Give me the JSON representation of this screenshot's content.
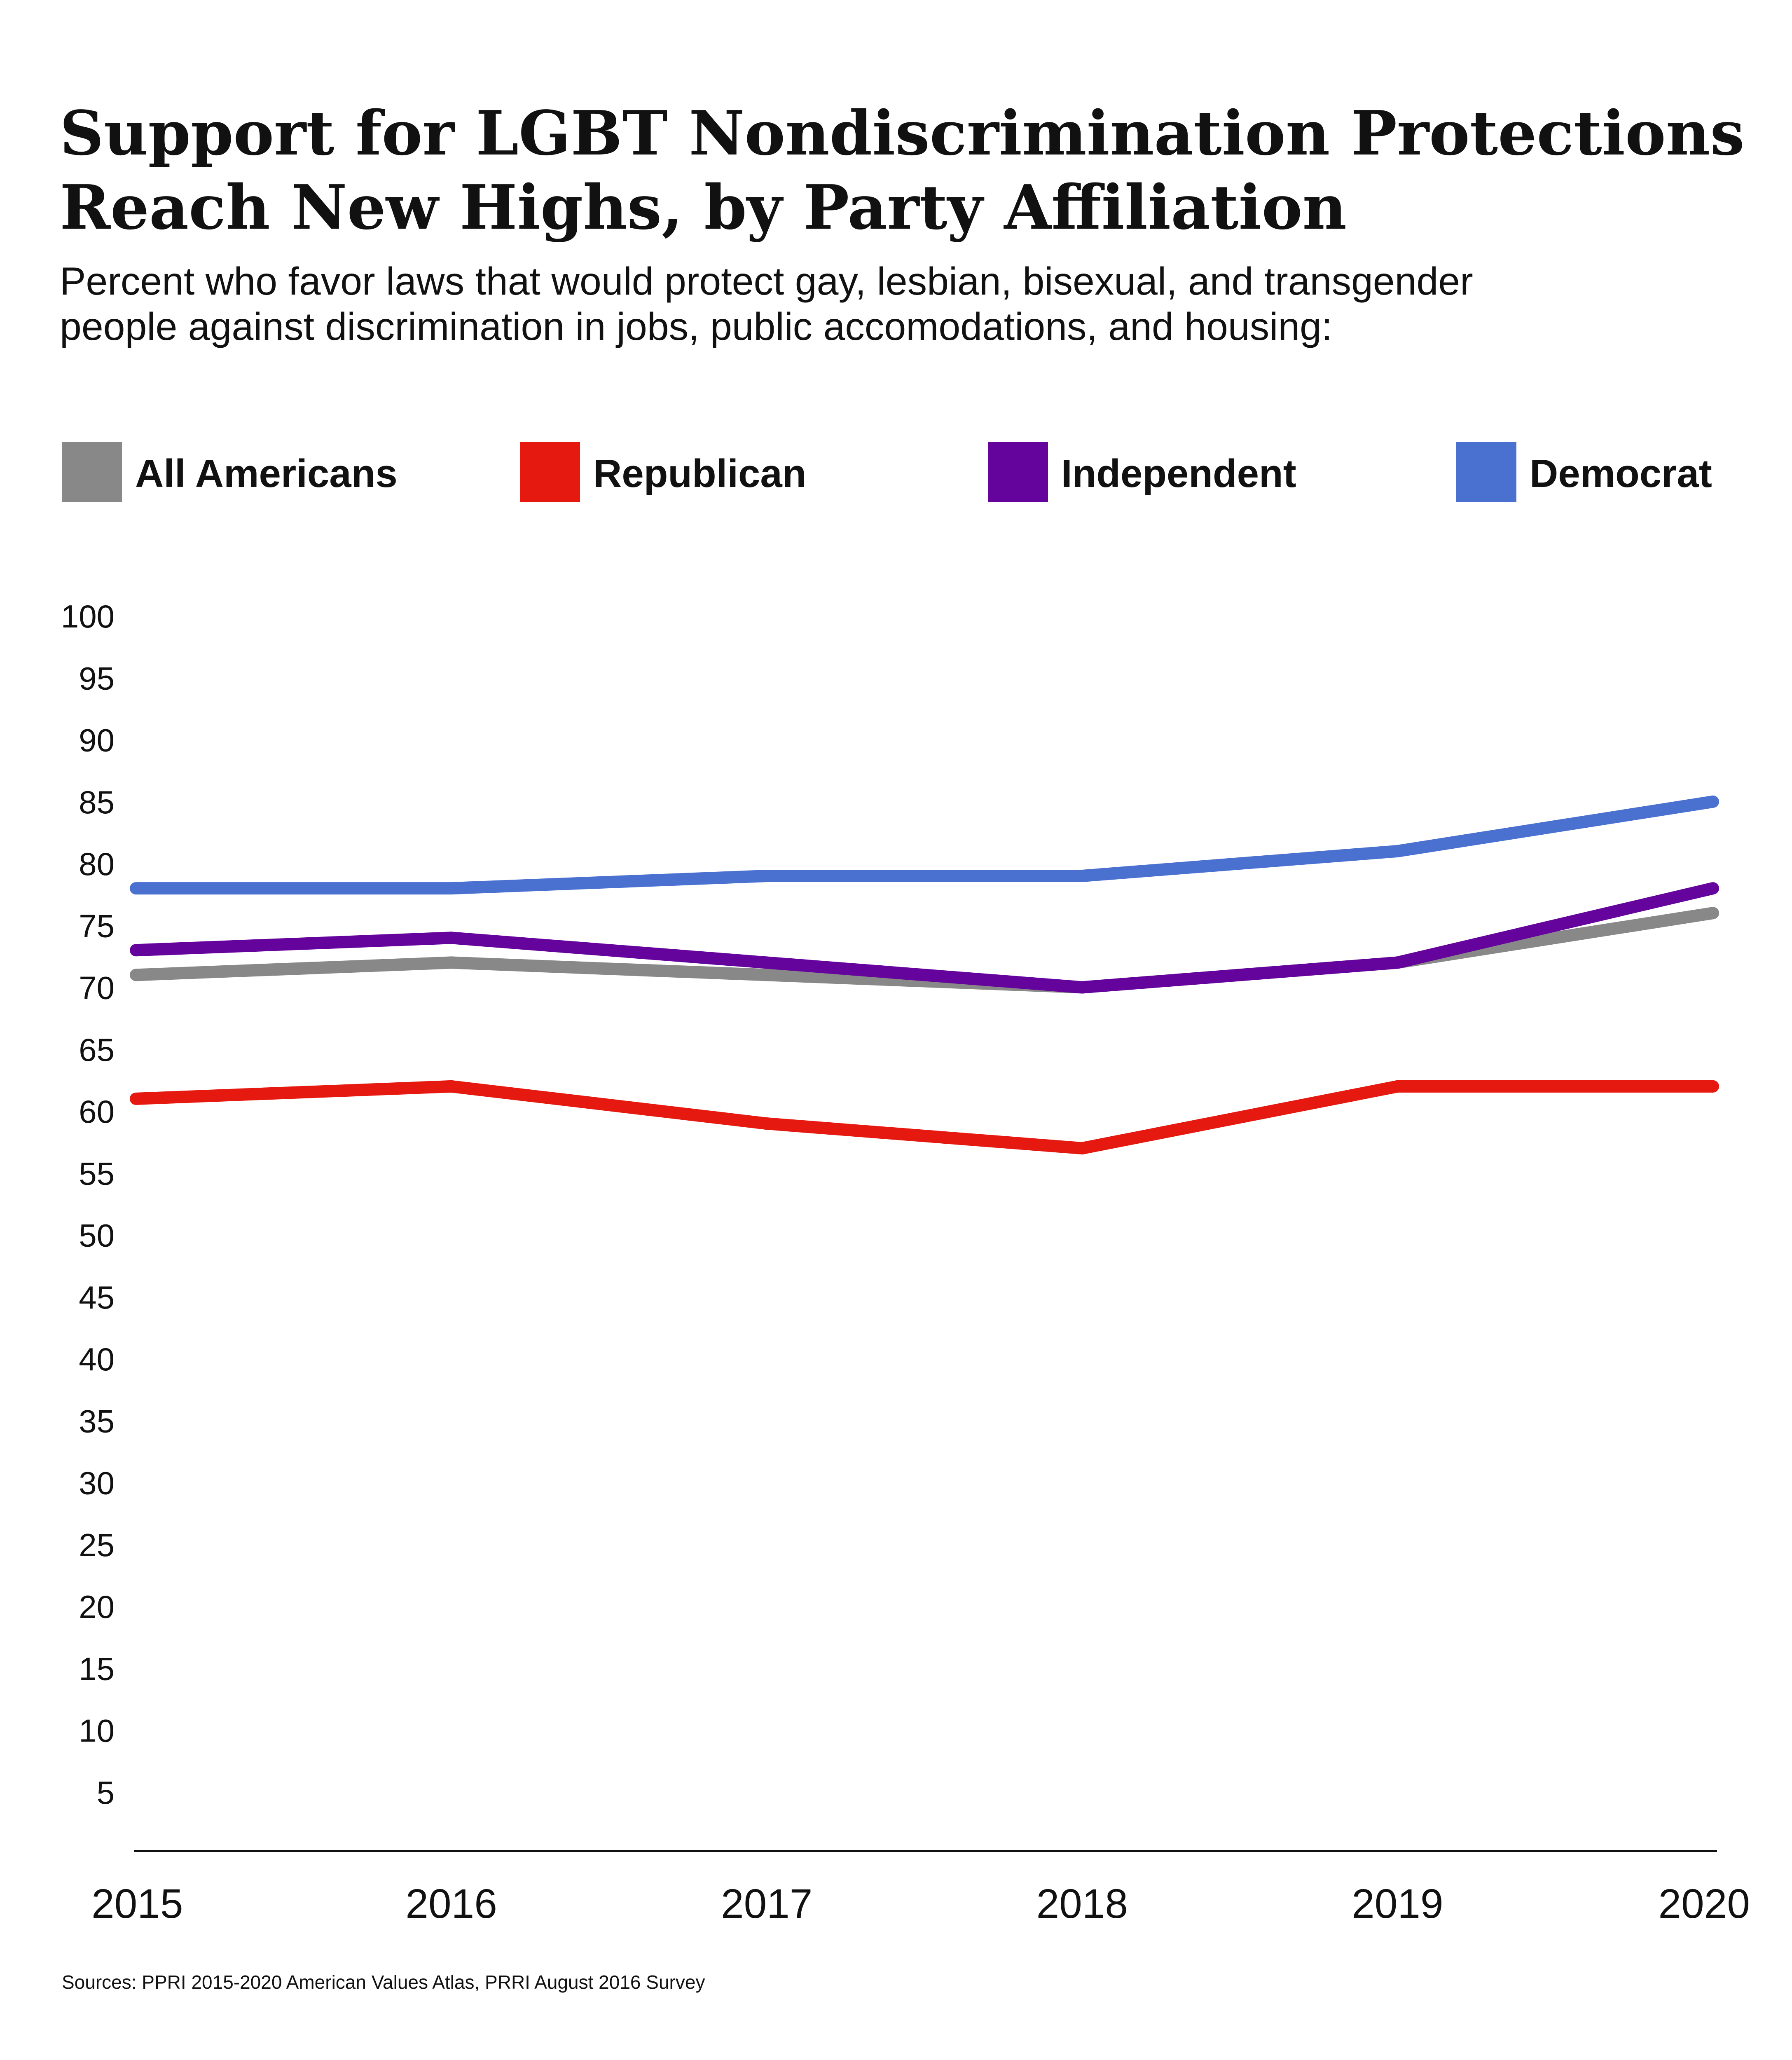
{
  "title_lines": [
    "Support for LGBT Nondiscrimination Protections",
    "Reach New Highs, by Party Affiliation"
  ],
  "subtitle_lines": [
    "Percent who favor laws that would protect gay, lesbian, bisexual, and transgender",
    "people against discrimination in jobs, public accomodations, and housing:"
  ],
  "source": "Sources: PPRI 2015-2020 American Values Atlas, PRRI August 2016 Survey",
  "chart_data": {
    "type": "line",
    "x": [
      "2015",
      "2016",
      "2017",
      "2018",
      "2019",
      "2020"
    ],
    "ylim": [
      0,
      100
    ],
    "yticks": [
      5,
      10,
      15,
      20,
      25,
      30,
      35,
      40,
      45,
      50,
      55,
      60,
      65,
      70,
      75,
      80,
      85,
      90,
      95,
      100
    ],
    "grid": false,
    "legend_position": "top",
    "series": [
      {
        "name": "All Americans",
        "color": "#888888",
        "values": [
          71,
          72,
          71,
          70,
          72,
          76
        ]
      },
      {
        "name": "Republican",
        "color": "#e5190f",
        "values": [
          61,
          62,
          59,
          57,
          62,
          62
        ]
      },
      {
        "name": "Independent",
        "color": "#65049c",
        "values": [
          73,
          74,
          72,
          70,
          72,
          78
        ]
      },
      {
        "name": "Democrat",
        "color": "#4a70d0",
        "values": [
          78,
          78,
          79,
          79,
          81,
          85
        ]
      }
    ]
  }
}
